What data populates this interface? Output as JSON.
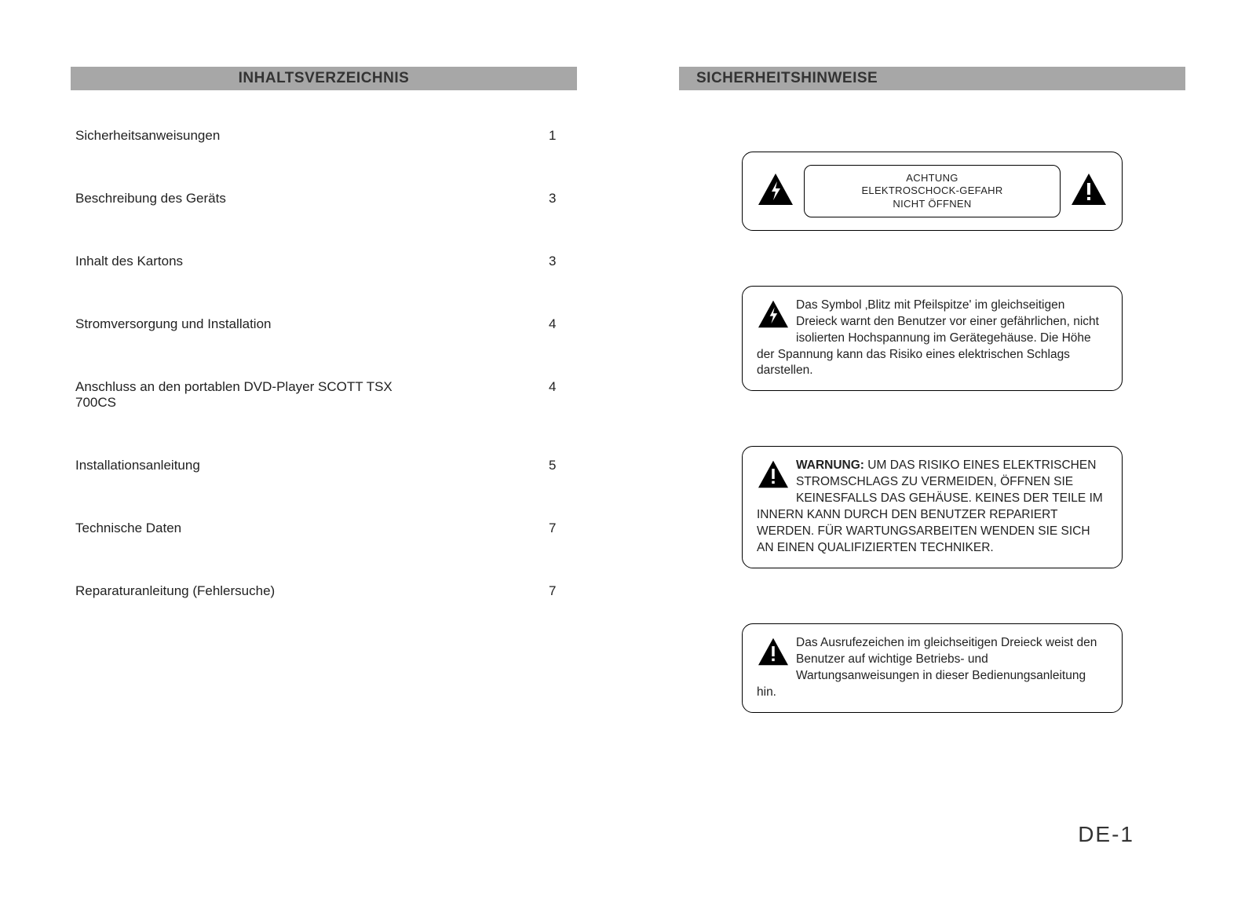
{
  "left": {
    "header": "INHALTSVERZEICHNIS",
    "toc": [
      {
        "label": "Sicherheitsanweisungen",
        "page": "1"
      },
      {
        "label": "Beschreibung des Geräts",
        "page": "3"
      },
      {
        "label": "Inhalt des Kartons",
        "page": "3"
      },
      {
        "label": "Stromversorgung und Installation",
        "page": "4"
      },
      {
        "label": "Anschluss an den portablen DVD-Player SCOTT TSX 700CS",
        "page": "4"
      },
      {
        "label": "Installationsanleitung",
        "page": "5"
      },
      {
        "label": "Technische Daten",
        "page": "7"
      },
      {
        "label": "Reparaturanleitung (Fehlersuche)",
        "page": "7"
      }
    ]
  },
  "right": {
    "header": "SICHERHEITSHINWEISE",
    "attention": {
      "line1": "ACHTUNG",
      "line2": "ELEKTROSCHOCK-GEFAHR",
      "line3": "NICHT ÖFFNEN"
    },
    "box_bolt": "Das Symbol ‚Blitz mit Pfeilspitze' im gleichseitigen Dreieck warnt den Benutzer vor einer gefährlichen, nicht isolierten Hochspannung im Gerätegehäuse. Die Höhe der Spannung kann das Risiko eines elektrischen Schlags darstellen.",
    "box_warn_title": "WARNUNG:",
    "box_warn_body": "UM DAS RISIKO EINES ELEKTRISCHEN STROMSCHLAGS ZU VERMEIDEN, ÖFFNEN SIE KEINESFALLS DAS GEHÄUSE. KEINES DER TEILE IM INNERN KANN DURCH DEN BENUTZER REPARIERT WERDEN. FÜR WARTUNGSARBEITEN WENDEN SIE SICH AN EINEN QUALIFIZIERTEN TECHNIKER.",
    "box_exclaim": "Das Ausrufezeichen im gleichseitigen Dreieck weist den Benutzer auf wichtige Betriebs- und Wartungsanweisungen in dieser Bedienungsanleitung hin."
  },
  "page_number": "DE-1",
  "colors": {
    "header_bg": "#a7a7a7",
    "text": "#222222",
    "page_bg": "#ffffff"
  }
}
